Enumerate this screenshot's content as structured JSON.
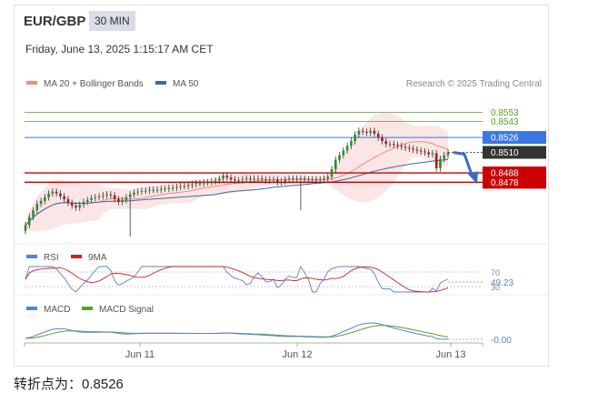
{
  "header": {
    "symbol": "EUR/GBP",
    "timeframe": "30 MIN",
    "date": "Friday, June 13, 2025 1:15:17 AM CET"
  },
  "legend": {
    "ma20": "MA 20 + Bollinger Bands",
    "ma50": "MA 50",
    "credit": "Research © 2025 Trading Central"
  },
  "colors": {
    "ma20": "#f08a8a",
    "ma50": "#3a6b9e",
    "bull_candle": "#2e8b2e",
    "bear_candle": "#a32020",
    "resistance_green": "#5a9e2a",
    "pivot": "#3a78e0",
    "support": "#cc0000",
    "current": "#333333",
    "forecast_arrow": "#3a6ec0",
    "rsi": "#5b7fd1",
    "rsi_ma": "#cc2222",
    "macd": "#5b7fd1",
    "macd_signal": "#5aa02c"
  },
  "chart_data": [
    {
      "type": "candlestick",
      "pair": "EUR/GBP",
      "ylim": [
        0.8418,
        0.8566
      ],
      "x_ticks": [
        "Jun 11",
        "Jun 12",
        "Jun 13"
      ],
      "levels": [
        {
          "value": 0.8553,
          "label": "0.8553",
          "kind": "resistance"
        },
        {
          "value": 0.8543,
          "label": "0.8543",
          "kind": "resistance"
        },
        {
          "value": 0.8526,
          "label": "0.8526",
          "kind": "pivot"
        },
        {
          "value": 0.851,
          "label": "0.8510",
          "kind": "last"
        },
        {
          "value": 0.8488,
          "label": "0.8488",
          "kind": "support"
        },
        {
          "value": 0.8478,
          "label": "0.8478",
          "kind": "support"
        }
      ],
      "closes": [
        0.8432,
        0.8441,
        0.8448,
        0.8455,
        0.8458,
        0.8462,
        0.8466,
        0.8468,
        0.8466,
        0.8463,
        0.846,
        0.8456,
        0.8453,
        0.8451,
        0.8454,
        0.8457,
        0.8459,
        0.8461,
        0.8462,
        0.8463,
        0.8464,
        0.8465,
        0.8464,
        0.846,
        0.8457,
        0.8459,
        0.8462,
        0.8465,
        0.8467,
        0.8468,
        0.8469,
        0.8469,
        0.847,
        0.847,
        0.847,
        0.8471,
        0.8471,
        0.8472,
        0.8472,
        0.8473,
        0.8474,
        0.8474,
        0.8475,
        0.8476,
        0.8477,
        0.8477,
        0.8478,
        0.8478,
        0.8479,
        0.848,
        0.8482,
        0.8485,
        0.8483,
        0.8481,
        0.848,
        0.848,
        0.8481,
        0.8482,
        0.8481,
        0.8482,
        0.8482,
        0.8481,
        0.848,
        0.8481,
        0.8481,
        0.8478,
        0.8479,
        0.8481,
        0.8482,
        0.8482,
        0.8482,
        0.8482,
        0.8481,
        0.8481,
        0.8481,
        0.848,
        0.8481,
        0.8482,
        0.8484,
        0.8492,
        0.8502,
        0.8507,
        0.8512,
        0.8517,
        0.8522,
        0.8529,
        0.8533,
        0.8532,
        0.8531,
        0.8533,
        0.853,
        0.8526,
        0.8522,
        0.8519,
        0.8519,
        0.8518,
        0.8517,
        0.8516,
        0.8515,
        0.8514,
        0.8513,
        0.8512,
        0.8511,
        0.851,
        0.8508,
        0.8509,
        0.8493,
        0.8503,
        0.8507,
        0.851
      ],
      "wick_low_spikes": [
        {
          "index": 27,
          "low": 0.842
        },
        {
          "index": 71,
          "low": 0.8448
        }
      ],
      "forecast": {
        "from": 0.851,
        "to": 0.8478
      }
    },
    {
      "type": "line",
      "name": "RSI",
      "legend": [
        "RSI",
        "9MA"
      ],
      "levels": [
        70,
        30
      ],
      "last_value": "49.23",
      "level_labels": [
        "70",
        "30"
      ]
    },
    {
      "type": "line",
      "name": "MACD",
      "legend": [
        "MACD",
        "MACD Signal"
      ],
      "last_value": "-0.00",
      "x_ticks": [
        "Jun 11",
        "Jun 12",
        "Jun 13"
      ]
    }
  ],
  "footer": {
    "text": "转折点为：0.8526"
  }
}
